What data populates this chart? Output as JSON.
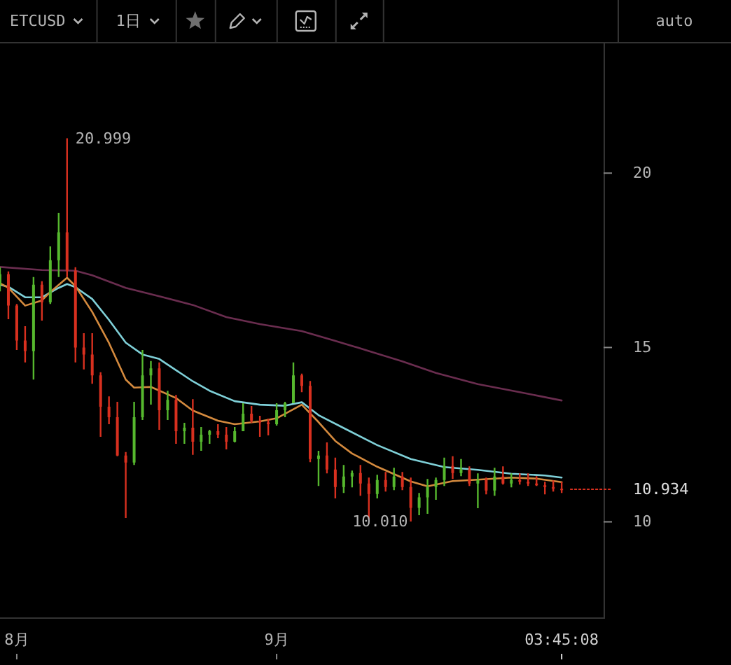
{
  "chart_data": {
    "type": "candlestick",
    "title": "ETCUSD",
    "subtitle": "1日",
    "x": [
      "--07-30",
      "--07-31",
      "--08-01",
      "--08-02",
      "--08-03",
      "--08-04",
      "--08-05",
      "--08-06",
      "--08-07",
      "--08-08",
      "--08-09",
      "--08-10",
      "--08-11",
      "--08-12",
      "--08-13",
      "--08-14",
      "--08-15",
      "--08-16",
      "--08-17",
      "--08-18",
      "--08-19",
      "--08-20",
      "--08-21",
      "--08-22",
      "--08-23",
      "--08-24",
      "--08-25",
      "--08-26",
      "--08-27",
      "--08-28",
      "--08-29",
      "--08-30",
      "--08-31",
      "--09-01",
      "--09-02",
      "--09-03",
      "--09-04",
      "--09-05",
      "--09-06",
      "--09-07",
      "--09-08",
      "--09-09",
      "--09-10",
      "--09-11",
      "--09-12",
      "--09-13",
      "--09-14",
      "--09-15",
      "--09-16",
      "--09-17",
      "--09-18",
      "--09-19",
      "--09-20",
      "--09-21",
      "--09-22",
      "--09-23",
      "--09-24",
      "--09-25",
      "--09-26",
      "--09-27",
      "--09-28",
      "--09-29",
      "--09-30",
      "--10-01",
      "--10-02",
      "--10-03",
      "--10-04",
      "--10-05"
    ],
    "ohlc": [
      [
        16.8,
        17.3,
        16.61,
        17.1
      ],
      [
        17.1,
        17.18,
        15.81,
        16.2
      ],
      [
        16.2,
        16.25,
        14.93,
        15.2
      ],
      [
        15.2,
        15.61,
        14.57,
        14.9
      ],
      [
        14.9,
        17.02,
        14.08,
        16.8
      ],
      [
        16.8,
        16.9,
        15.77,
        16.3
      ],
      [
        16.3,
        17.9,
        16.25,
        17.5
      ],
      [
        17.5,
        18.86,
        17.02,
        18.3
      ],
      [
        18.3,
        20.999,
        17.02,
        17.2
      ],
      [
        17.2,
        17.3,
        14.57,
        15.0
      ],
      [
        15.0,
        15.41,
        14.37,
        14.8
      ],
      [
        14.8,
        15.41,
        13.96,
        14.2
      ],
      [
        14.2,
        14.29,
        12.44,
        13.3
      ],
      [
        13.3,
        13.6,
        12.8,
        13.0
      ],
      [
        13.0,
        13.44,
        11.88,
        11.9
      ],
      [
        11.9,
        12.0,
        10.11,
        11.7
      ],
      [
        11.7,
        13.44,
        11.63,
        13.0
      ],
      [
        13.0,
        14.93,
        12.92,
        14.2
      ],
      [
        14.2,
        14.61,
        13.36,
        14.4
      ],
      [
        14.4,
        14.57,
        12.64,
        13.2
      ],
      [
        13.2,
        13.76,
        12.92,
        13.5
      ],
      [
        13.5,
        13.64,
        12.24,
        12.6
      ],
      [
        12.6,
        12.84,
        12.24,
        12.7
      ],
      [
        12.7,
        13.52,
        11.92,
        12.3
      ],
      [
        12.3,
        12.72,
        12.04,
        12.5
      ],
      [
        12.5,
        12.64,
        12.24,
        12.6
      ],
      [
        12.6,
        12.8,
        12.4,
        12.5
      ],
      [
        12.5,
        12.72,
        12.08,
        12.3
      ],
      [
        12.3,
        12.72,
        12.28,
        12.6
      ],
      [
        12.6,
        13.4,
        12.6,
        13.1
      ],
      [
        13.1,
        13.32,
        12.84,
        12.9
      ],
      [
        12.9,
        13.04,
        12.44,
        12.85
      ],
      [
        12.85,
        12.96,
        12.48,
        12.8
      ],
      [
        12.8,
        13.4,
        12.76,
        13.2
      ],
      [
        13.2,
        13.44,
        13.0,
        13.4
      ],
      [
        13.4,
        14.57,
        13.4,
        14.2
      ],
      [
        14.2,
        14.25,
        13.72,
        13.9
      ],
      [
        13.9,
        14.04,
        11.71,
        11.8
      ],
      [
        11.8,
        12.04,
        11.03,
        11.9
      ],
      [
        11.9,
        12.28,
        11.39,
        11.5
      ],
      [
        11.5,
        11.84,
        10.67,
        11.0
      ],
      [
        11.0,
        11.63,
        10.83,
        11.3
      ],
      [
        11.3,
        11.47,
        10.99,
        11.4
      ],
      [
        11.4,
        11.63,
        10.75,
        11.1
      ],
      [
        11.1,
        11.27,
        10.07,
        10.8
      ],
      [
        10.8,
        11.35,
        10.67,
        11.2
      ],
      [
        11.2,
        11.43,
        10.87,
        11.0
      ],
      [
        11.0,
        11.55,
        10.91,
        11.3
      ],
      [
        11.3,
        11.43,
        10.91,
        11.0
      ],
      [
        11.0,
        11.27,
        10.01,
        10.4
      ],
      [
        10.4,
        10.83,
        10.19,
        10.7
      ],
      [
        10.7,
        11.23,
        10.23,
        11.0
      ],
      [
        11.0,
        11.27,
        10.63,
        11.2
      ],
      [
        11.2,
        11.84,
        11.03,
        11.6
      ],
      [
        11.6,
        11.88,
        11.23,
        11.4
      ],
      [
        11.4,
        11.8,
        11.31,
        11.5
      ],
      [
        11.5,
        11.59,
        11.03,
        11.1
      ],
      [
        11.1,
        11.39,
        10.39,
        11.2
      ],
      [
        11.2,
        11.27,
        10.79,
        10.9
      ],
      [
        10.9,
        11.55,
        10.75,
        11.3
      ],
      [
        11.3,
        11.59,
        11.07,
        11.1
      ],
      [
        11.1,
        11.39,
        10.99,
        11.2
      ],
      [
        11.2,
        11.39,
        11.07,
        11.15
      ],
      [
        11.15,
        11.39,
        11.03,
        11.1
      ],
      [
        11.1,
        11.31,
        11.03,
        11.05
      ],
      [
        11.05,
        11.15,
        10.79,
        11.0
      ],
      [
        11.0,
        11.19,
        10.87,
        10.95
      ],
      [
        10.95,
        11.15,
        10.83,
        10.934
      ]
    ],
    "colors": [
      "#56b82e",
      "#d8301f",
      "#d8301f",
      "#d8301f",
      "#56b82e",
      "#d8301f",
      "#56b82e",
      "#56b82e",
      "#d8301f",
      "#d8301f",
      "#d8301f",
      "#d8301f",
      "#d8301f",
      "#d8301f",
      "#d8301f",
      "#d8301f",
      "#56b82e",
      "#56b82e",
      "#56b82e",
      "#d8301f",
      "#56b82e",
      "#d8301f",
      "#56b82e",
      "#d8301f",
      "#56b82e",
      "#56b82e",
      "#d8301f",
      "#d8301f",
      "#56b82e",
      "#56b82e",
      "#d8301f",
      "#d8301f",
      "#d8301f",
      "#56b82e",
      "#56b82e",
      "#56b82e",
      "#d8301f",
      "#d8301f",
      "#56b82e",
      "#d8301f",
      "#d8301f",
      "#56b82e",
      "#56b82e",
      "#d8301f",
      "#d8301f",
      "#56b82e",
      "#d8301f",
      "#56b82e",
      "#d8301f",
      "#d8301f",
      "#56b82e",
      "#56b82e",
      "#56b82e",
      "#56b82e",
      "#d8301f",
      "#56b82e",
      "#d8301f",
      "#56b82e",
      "#d8301f",
      "#56b82e",
      "#d8301f",
      "#56b82e",
      "#d8301f",
      "#d8301f",
      "#d8301f",
      "#d8301f",
      "#d8301f",
      "#d8301f"
    ],
    "series": [
      {
        "type": "line",
        "color": "#6a2d4f",
        "x": [
          "--07-30",
          "--08-04",
          "--08-08",
          "--08-10",
          "--08-14",
          "--08-18",
          "--08-22",
          "--08-26",
          "--08-30",
          "--09-04",
          "--09-08",
          "--09-12",
          "--09-16",
          "--09-20",
          "--09-25",
          "--09-30",
          "--10-05"
        ],
        "values": [
          17.31,
          17.22,
          17.2,
          17.07,
          16.71,
          16.47,
          16.22,
          15.87,
          15.67,
          15.47,
          15.19,
          14.9,
          14.6,
          14.27,
          13.95,
          13.72,
          13.48
        ]
      },
      {
        "type": "line",
        "color": "#7fd0d8",
        "x": [
          "--07-30",
          "--07-31",
          "--08-02",
          "--08-04",
          "--08-06",
          "--08-07",
          "--08-08",
          "--08-10",
          "--08-12",
          "--08-14",
          "--08-16",
          "--08-18",
          "--08-20",
          "--08-22",
          "--08-24",
          "--08-27",
          "--08-30",
          "--09-02",
          "--09-04",
          "--09-06",
          "--09-09",
          "--09-13",
          "--09-17",
          "--09-21",
          "--09-25",
          "--09-29",
          "--10-03",
          "--10-05"
        ],
        "values": [
          16.8,
          16.74,
          16.44,
          16.44,
          16.71,
          16.82,
          16.73,
          16.39,
          15.79,
          15.14,
          14.8,
          14.67,
          14.35,
          14.03,
          13.76,
          13.46,
          13.36,
          13.33,
          13.43,
          13.06,
          12.69,
          12.2,
          11.8,
          11.57,
          11.49,
          11.38,
          11.33,
          11.27
        ]
      },
      {
        "type": "line",
        "color": "#d48a3e",
        "x": [
          "--07-30",
          "--07-31",
          "--08-02",
          "--08-04",
          "--08-05",
          "--08-07",
          "--08-08",
          "--08-10",
          "--08-12",
          "--08-14",
          "--08-15",
          "--08-17",
          "--08-20",
          "--08-22",
          "--08-25",
          "--08-27",
          "--08-30",
          "--09-01",
          "--09-04",
          "--09-06",
          "--09-08",
          "--09-10",
          "--09-13",
          "--09-15",
          "--09-17",
          "--09-19",
          "--09-22",
          "--09-25",
          "--09-29",
          "--10-02",
          "--10-05"
        ],
        "values": [
          16.84,
          16.71,
          16.2,
          16.35,
          16.59,
          17.0,
          16.76,
          16.02,
          15.13,
          14.08,
          13.85,
          13.87,
          13.55,
          13.19,
          12.9,
          12.8,
          12.88,
          12.97,
          13.36,
          12.86,
          12.32,
          11.96,
          11.58,
          11.37,
          11.16,
          11.02,
          11.17,
          11.21,
          11.27,
          11.24,
          11.14
        ]
      }
    ],
    "xlim": [
      "--07-30",
      "--10-10"
    ],
    "ylim": [
      7.26,
      23.72
    ],
    "xticks": [
      {
        "value": "--08-01",
        "label": "8月"
      },
      {
        "value": "--09-01",
        "label": "9月"
      }
    ],
    "yticks": [
      10,
      15,
      20
    ],
    "ref_lines": [
      {
        "axis": "y",
        "value": 10.934,
        "label": "10.934",
        "color": "#d8301f",
        "line_style": "dotted"
      }
    ],
    "annotations": [
      {
        "text": "20.999",
        "x": "--08-07",
        "y": 20.999
      },
      {
        "text": "10.010",
        "x": "--09-17",
        "y": 10.01
      },
      "auto",
      "03:45:08"
    ]
  }
}
